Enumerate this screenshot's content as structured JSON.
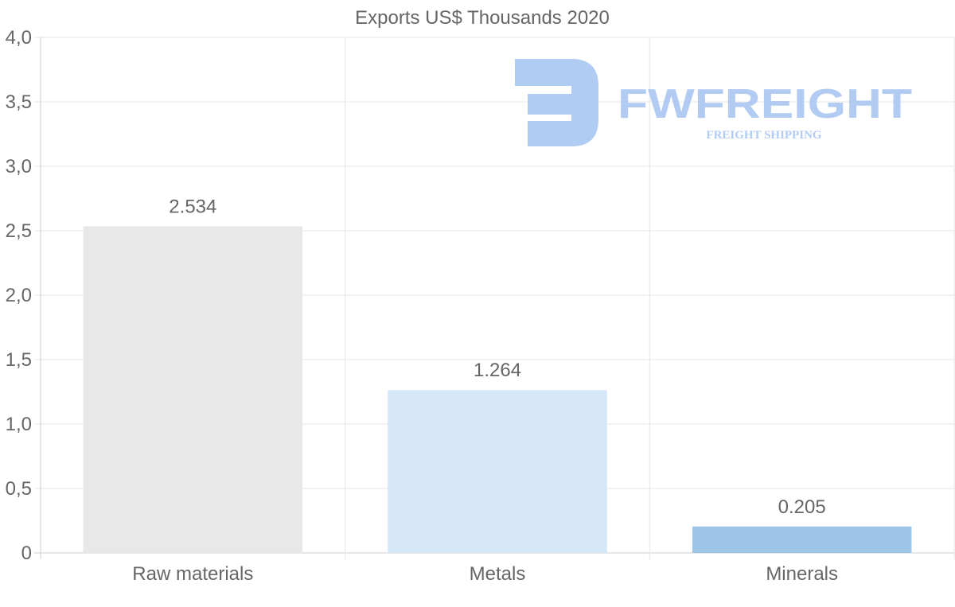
{
  "chart_data": {
    "type": "bar",
    "title": "Exports US$ Thousands 2020",
    "categories": [
      "Raw materials",
      "Metals",
      "Minerals"
    ],
    "values": [
      2.534,
      1.264,
      0.205
    ],
    "value_labels": [
      "2.534",
      "1.264",
      "0.205"
    ],
    "bar_colors": [
      "#e8e8e8",
      "#d6e7f8",
      "#9dc5e8"
    ],
    "ylim": [
      0,
      4.0
    ],
    "yticks": [
      0,
      0.5,
      1.0,
      1.5,
      2.0,
      2.5,
      3.0,
      3.5,
      4.0
    ],
    "ytick_labels": [
      "0",
      "0,5",
      "1,0",
      "1,5",
      "2,0",
      "2,5",
      "3,0",
      "3,5",
      "4,0"
    ],
    "xlabel": "",
    "ylabel": "",
    "grid": true,
    "legend": "none"
  },
  "watermark": {
    "name": "FWFREIGHT",
    "tagline": "FREIGHT SHIPPING",
    "color": "#a9c6f2",
    "icon": "fw-logo-icon"
  },
  "colors": {
    "grid": "#e6e6e6",
    "axis": "#cccccc",
    "text": "#666666"
  }
}
